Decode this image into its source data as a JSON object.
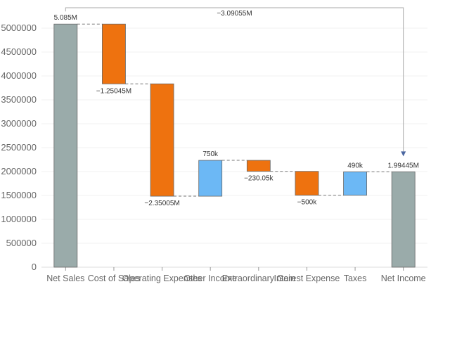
{
  "chart_data": {
    "type": "bar",
    "subtype": "waterfall",
    "title": "",
    "xlabel": "",
    "ylabel": "",
    "ylim": [
      0,
      5000000
    ],
    "yticks": [
      0,
      500000,
      1000000,
      1500000,
      2000000,
      2500000,
      3000000,
      3500000,
      4000000,
      4500000,
      5000000
    ],
    "grid": true,
    "legend": "none",
    "categories": [
      "Net Sales",
      "Cost of Sales",
      "Operating Expenses",
      "Other Income",
      "Extraordinary Gain",
      "Interest Expense",
      "Taxes",
      "Net Income"
    ],
    "items": [
      {
        "category": "Net Sales",
        "kind": "total",
        "start": 0,
        "end": 5085000,
        "label": "5.085M"
      },
      {
        "category": "Cost of Sales",
        "kind": "decrease",
        "start": 5085000,
        "end": 3834550,
        "label": "−1.25045M"
      },
      {
        "category": "Operating Expenses",
        "kind": "decrease",
        "start": 3834550,
        "end": 1484500,
        "label": "−2.35005M"
      },
      {
        "category": "Other Income",
        "kind": "increase",
        "start": 1484500,
        "end": 2234500,
        "label": "750k"
      },
      {
        "category": "Extraordinary Gain",
        "kind": "decrease",
        "start": 2234500,
        "end": 2004450,
        "label": "−230.05k"
      },
      {
        "category": "Interest Expense",
        "kind": "decrease",
        "start": 2004450,
        "end": 1504450,
        "label": "−500k"
      },
      {
        "category": "Taxes",
        "kind": "increase",
        "start": 1504450,
        "end": 1994450,
        "label": "490k"
      },
      {
        "category": "Net Income",
        "kind": "total",
        "start": 0,
        "end": 1994450,
        "label": "1.99445M"
      }
    ],
    "annotation": {
      "from": "Net Sales",
      "to": "Net Income",
      "label": "−3.09055M"
    },
    "colors": {
      "total": "#9aabaa",
      "decrease": "#ee720f",
      "increase": "#6cb8f5",
      "stroke": "#666666",
      "connector": "#777777",
      "grid": "#f2f2f2",
      "arrow": "#4a66a0"
    }
  }
}
